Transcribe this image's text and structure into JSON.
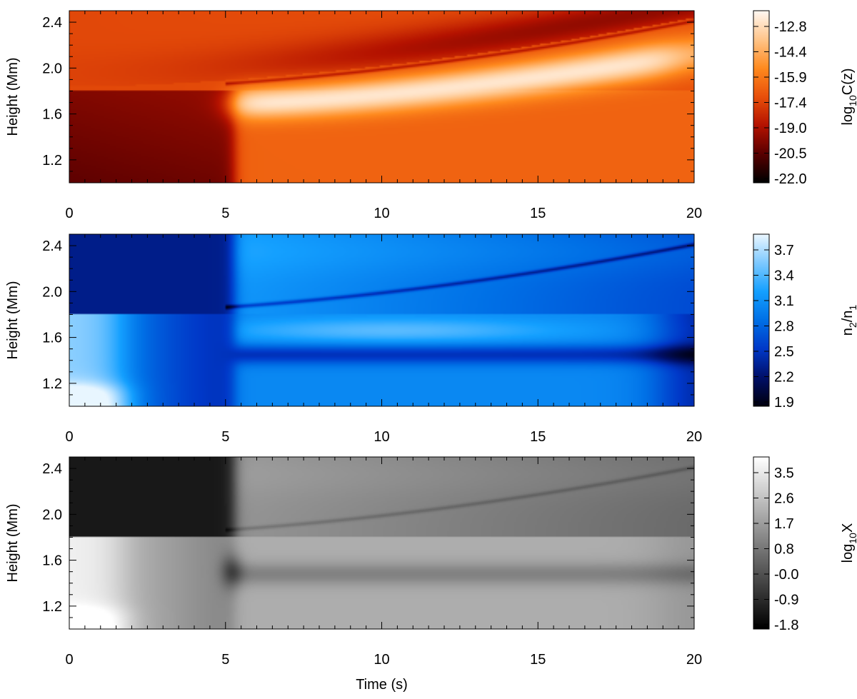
{
  "chart_data": [
    {
      "type": "heatmap",
      "xlabel": "",
      "ylabel": "Height (Mm)",
      "xlim": [
        0,
        20
      ],
      "ylim": [
        1.0,
        2.5
      ],
      "x_ticks": [
        "0",
        "5",
        "10",
        "15",
        "20"
      ],
      "y_ticks": [
        "1.2",
        "1.6",
        "2.0",
        "2.4"
      ],
      "colorbar": {
        "label_main": "log",
        "label_sub": "10",
        "label_tail": "C(z)",
        "ticks": [
          "-22.0",
          "-20.5",
          "-19.0",
          "-17.4",
          "-15.9",
          "-14.4",
          "-12.8"
        ],
        "range": [
          -22.0,
          -12.8
        ],
        "colors": [
          "#000000",
          "#5a0000",
          "#b41200",
          "#e8500a",
          "#ff8a1e",
          "#ffc488",
          "#fff7f0"
        ]
      },
      "structure": {
        "boundary_height": 1.81,
        "transition_time": 5.3,
        "band_center_start": 1.69,
        "band_center_end": 2.12,
        "background_top_left": -17.6,
        "background_bottom_left": -20.4,
        "background_bottom_right": -16.9,
        "band_peak": -13.3
      }
    },
    {
      "type": "heatmap",
      "xlabel": "",
      "ylabel": "Height (Mm)",
      "xlim": [
        0,
        20
      ],
      "ylim": [
        1.0,
        2.5
      ],
      "x_ticks": [
        "0",
        "5",
        "10",
        "15",
        "20"
      ],
      "y_ticks": [
        "1.2",
        "1.6",
        "2.0",
        "2.4"
      ],
      "colorbar": {
        "label_main": "n",
        "label_sub": "2",
        "label_tail": "/n",
        "label_sub2": "1",
        "ticks": [
          "1.9",
          "2.2",
          "2.5",
          "2.8",
          "3.1",
          "3.4",
          "3.7"
        ],
        "range": [
          1.9,
          3.7
        ],
        "colors": [
          "#000010",
          "#00106a",
          "#0038c8",
          "#0070e6",
          "#14a0ff",
          "#7cc8ff",
          "#e8f6ff"
        ]
      },
      "structure": {
        "boundary_height": 1.81,
        "transition_time": 5.3,
        "top_left": 2.3,
        "top_right": 3.05,
        "lower_left": 3.45,
        "lower_right": 2.95,
        "band_peak": 3.3
      }
    },
    {
      "type": "heatmap",
      "xlabel": "Time (s)",
      "ylabel": "Height (Mm)",
      "xlim": [
        0,
        20
      ],
      "ylim": [
        1.0,
        2.5
      ],
      "x_ticks": [
        "0",
        "5",
        "10",
        "15",
        "20"
      ],
      "y_ticks": [
        "1.2",
        "1.6",
        "2.0",
        "2.4"
      ],
      "colorbar": {
        "label_main": "log",
        "label_sub": "10",
        "label_tail": "X",
        "ticks": [
          "-1.8",
          "-0.9",
          "-0.0",
          "0.8",
          "1.7",
          "2.6",
          "3.5"
        ],
        "range": [
          -1.8,
          3.5
        ],
        "colors": [
          "#000000",
          "#ffffff"
        ]
      },
      "structure": {
        "boundary_height": 1.81,
        "transition_time": 5.3,
        "top_left": -1.3,
        "top_right": 1.3,
        "lower_left": 3.2,
        "lower_right": 1.8
      }
    }
  ]
}
